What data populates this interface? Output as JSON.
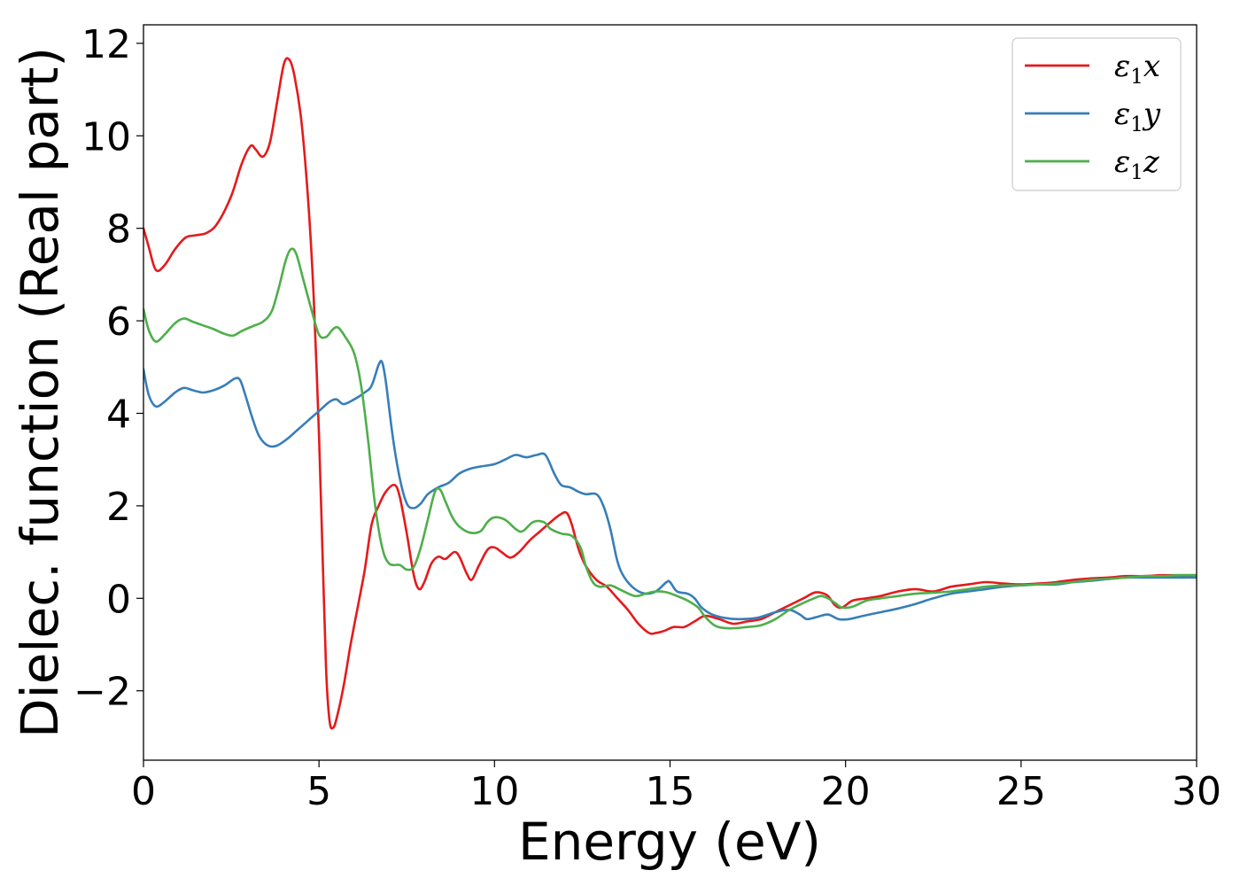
{
  "chart_data": {
    "type": "line",
    "title": "",
    "xlabel": "Energy (eV)",
    "ylabel": "Dielec. function (Real part)",
    "xlim": [
      0,
      30
    ],
    "ylim": [
      -3.5,
      12.4
    ],
    "xticks": [
      0,
      5,
      10,
      15,
      20,
      25,
      30
    ],
    "yticks": [
      -2,
      0,
      2,
      4,
      6,
      8,
      10,
      12
    ],
    "xtick_labels": [
      "0",
      "5",
      "10",
      "15",
      "20",
      "25",
      "30"
    ],
    "ytick_labels": [
      "−2",
      "0",
      "2",
      "4",
      "6",
      "8",
      "10",
      "12"
    ],
    "grid": false,
    "legend_position": "top-right",
    "series": [
      {
        "name": "ε1x",
        "legend_main": "ε",
        "legend_sub": "1",
        "legend_var": "x",
        "color": "#e41a1c",
        "points": [
          [
            0,
            8.0
          ],
          [
            0.15,
            7.6
          ],
          [
            0.35,
            7.1
          ],
          [
            0.6,
            7.2
          ],
          [
            0.9,
            7.55
          ],
          [
            1.2,
            7.8
          ],
          [
            1.5,
            7.85
          ],
          [
            1.8,
            7.9
          ],
          [
            2.1,
            8.1
          ],
          [
            2.5,
            8.7
          ],
          [
            2.8,
            9.4
          ],
          [
            3.05,
            9.78
          ],
          [
            3.2,
            9.7
          ],
          [
            3.4,
            9.55
          ],
          [
            3.6,
            9.85
          ],
          [
            3.8,
            10.7
          ],
          [
            4.0,
            11.55
          ],
          [
            4.15,
            11.65
          ],
          [
            4.3,
            11.3
          ],
          [
            4.5,
            10.3
          ],
          [
            4.7,
            8.5
          ],
          [
            4.85,
            6.5
          ],
          [
            5.0,
            3.5
          ],
          [
            5.1,
            1.0
          ],
          [
            5.2,
            -1.5
          ],
          [
            5.3,
            -2.65
          ],
          [
            5.4,
            -2.8
          ],
          [
            5.5,
            -2.6
          ],
          [
            5.7,
            -1.9
          ],
          [
            5.9,
            -1.0
          ],
          [
            6.1,
            -0.2
          ],
          [
            6.3,
            0.6
          ],
          [
            6.5,
            1.6
          ],
          [
            6.7,
            2.0
          ],
          [
            6.9,
            2.3
          ],
          [
            7.15,
            2.45
          ],
          [
            7.3,
            2.2
          ],
          [
            7.5,
            1.4
          ],
          [
            7.7,
            0.5
          ],
          [
            7.85,
            0.2
          ],
          [
            8.0,
            0.35
          ],
          [
            8.2,
            0.75
          ],
          [
            8.4,
            0.9
          ],
          [
            8.6,
            0.85
          ],
          [
            8.85,
            1.0
          ],
          [
            9.0,
            0.9
          ],
          [
            9.2,
            0.55
          ],
          [
            9.35,
            0.4
          ],
          [
            9.55,
            0.7
          ],
          [
            9.8,
            1.05
          ],
          [
            10.0,
            1.1
          ],
          [
            10.2,
            1.0
          ],
          [
            10.45,
            0.88
          ],
          [
            10.7,
            1.0
          ],
          [
            11.0,
            1.25
          ],
          [
            11.3,
            1.45
          ],
          [
            11.6,
            1.65
          ],
          [
            11.85,
            1.8
          ],
          [
            12.05,
            1.85
          ],
          [
            12.2,
            1.6
          ],
          [
            12.4,
            1.05
          ],
          [
            12.6,
            0.7
          ],
          [
            12.9,
            0.4
          ],
          [
            13.2,
            0.25
          ],
          [
            13.5,
            0.0
          ],
          [
            13.8,
            -0.25
          ],
          [
            14.1,
            -0.55
          ],
          [
            14.4,
            -0.75
          ],
          [
            14.6,
            -0.75
          ],
          [
            14.85,
            -0.7
          ],
          [
            15.1,
            -0.62
          ],
          [
            15.4,
            -0.62
          ],
          [
            15.7,
            -0.5
          ],
          [
            16.0,
            -0.38
          ],
          [
            16.4,
            -0.45
          ],
          [
            16.8,
            -0.55
          ],
          [
            17.2,
            -0.5
          ],
          [
            17.6,
            -0.45
          ],
          [
            18.0,
            -0.3
          ],
          [
            18.4,
            -0.15
          ],
          [
            18.8,
            0.0
          ],
          [
            19.1,
            0.12
          ],
          [
            19.3,
            0.12
          ],
          [
            19.5,
            0.05
          ],
          [
            19.7,
            -0.15
          ],
          [
            19.9,
            -0.2
          ],
          [
            20.2,
            -0.05
          ],
          [
            20.6,
            0.0
          ],
          [
            21.0,
            0.05
          ],
          [
            21.5,
            0.15
          ],
          [
            22.0,
            0.2
          ],
          [
            22.5,
            0.15
          ],
          [
            23.0,
            0.25
          ],
          [
            23.5,
            0.3
          ],
          [
            24.0,
            0.35
          ],
          [
            24.5,
            0.32
          ],
          [
            25.0,
            0.3
          ],
          [
            25.5,
            0.32
          ],
          [
            26.0,
            0.35
          ],
          [
            26.5,
            0.4
          ],
          [
            27.0,
            0.43
          ],
          [
            27.5,
            0.45
          ],
          [
            28.0,
            0.48
          ],
          [
            28.5,
            0.48
          ],
          [
            29.0,
            0.5
          ],
          [
            29.5,
            0.5
          ],
          [
            30.0,
            0.5
          ]
        ]
      },
      {
        "name": "ε1y",
        "legend_main": "ε",
        "legend_sub": "1",
        "legend_var": "y",
        "color": "#377eb8",
        "points": [
          [
            0,
            4.95
          ],
          [
            0.15,
            4.4
          ],
          [
            0.35,
            4.15
          ],
          [
            0.6,
            4.25
          ],
          [
            0.9,
            4.45
          ],
          [
            1.15,
            4.55
          ],
          [
            1.4,
            4.5
          ],
          [
            1.7,
            4.45
          ],
          [
            2.0,
            4.5
          ],
          [
            2.3,
            4.6
          ],
          [
            2.6,
            4.75
          ],
          [
            2.75,
            4.72
          ],
          [
            2.9,
            4.4
          ],
          [
            3.1,
            3.9
          ],
          [
            3.3,
            3.5
          ],
          [
            3.55,
            3.3
          ],
          [
            3.8,
            3.3
          ],
          [
            4.1,
            3.45
          ],
          [
            4.4,
            3.65
          ],
          [
            4.7,
            3.85
          ],
          [
            5.0,
            4.05
          ],
          [
            5.3,
            4.25
          ],
          [
            5.5,
            4.3
          ],
          [
            5.7,
            4.2
          ],
          [
            6.0,
            4.3
          ],
          [
            6.3,
            4.45
          ],
          [
            6.5,
            4.6
          ],
          [
            6.7,
            5.05
          ],
          [
            6.8,
            5.1
          ],
          [
            6.9,
            4.7
          ],
          [
            7.1,
            3.5
          ],
          [
            7.3,
            2.6
          ],
          [
            7.5,
            2.05
          ],
          [
            7.7,
            1.95
          ],
          [
            7.9,
            2.05
          ],
          [
            8.1,
            2.25
          ],
          [
            8.4,
            2.4
          ],
          [
            8.7,
            2.5
          ],
          [
            9.0,
            2.7
          ],
          [
            9.3,
            2.8
          ],
          [
            9.6,
            2.85
          ],
          [
            10.0,
            2.9
          ],
          [
            10.3,
            3.0
          ],
          [
            10.6,
            3.1
          ],
          [
            10.9,
            3.05
          ],
          [
            11.2,
            3.1
          ],
          [
            11.45,
            3.1
          ],
          [
            11.7,
            2.7
          ],
          [
            11.9,
            2.45
          ],
          [
            12.15,
            2.4
          ],
          [
            12.4,
            2.3
          ],
          [
            12.6,
            2.25
          ],
          [
            12.9,
            2.25
          ],
          [
            13.1,
            2.0
          ],
          [
            13.3,
            1.5
          ],
          [
            13.5,
            0.8
          ],
          [
            13.7,
            0.45
          ],
          [
            14.0,
            0.2
          ],
          [
            14.3,
            0.1
          ],
          [
            14.6,
            0.15
          ],
          [
            14.9,
            0.35
          ],
          [
            15.0,
            0.35
          ],
          [
            15.2,
            0.15
          ],
          [
            15.5,
            0.1
          ],
          [
            15.7,
            0.0
          ],
          [
            15.9,
            -0.2
          ],
          [
            16.2,
            -0.35
          ],
          [
            16.6,
            -0.43
          ],
          [
            17.0,
            -0.45
          ],
          [
            17.5,
            -0.42
          ],
          [
            18.0,
            -0.3
          ],
          [
            18.4,
            -0.25
          ],
          [
            18.7,
            -0.35
          ],
          [
            18.9,
            -0.45
          ],
          [
            19.2,
            -0.4
          ],
          [
            19.5,
            -0.35
          ],
          [
            19.8,
            -0.45
          ],
          [
            20.1,
            -0.45
          ],
          [
            20.5,
            -0.38
          ],
          [
            21.0,
            -0.3
          ],
          [
            21.5,
            -0.22
          ],
          [
            22.0,
            -0.12
          ],
          [
            22.5,
            0.0
          ],
          [
            23.0,
            0.1
          ],
          [
            23.5,
            0.15
          ],
          [
            24.0,
            0.2
          ],
          [
            24.5,
            0.25
          ],
          [
            25.0,
            0.28
          ],
          [
            25.5,
            0.3
          ],
          [
            26.0,
            0.3
          ],
          [
            26.5,
            0.35
          ],
          [
            27.0,
            0.38
          ],
          [
            27.5,
            0.42
          ],
          [
            28.0,
            0.45
          ],
          [
            28.5,
            0.45
          ],
          [
            29.0,
            0.45
          ],
          [
            29.5,
            0.45
          ],
          [
            30.0,
            0.45
          ]
        ]
      },
      {
        "name": "ε1z",
        "legend_main": "ε",
        "legend_sub": "1",
        "legend_var": "z",
        "color": "#4daf4a",
        "points": [
          [
            0,
            6.25
          ],
          [
            0.15,
            5.8
          ],
          [
            0.35,
            5.55
          ],
          [
            0.6,
            5.7
          ],
          [
            0.9,
            5.95
          ],
          [
            1.15,
            6.05
          ],
          [
            1.4,
            5.98
          ],
          [
            1.7,
            5.9
          ],
          [
            2.0,
            5.82
          ],
          [
            2.3,
            5.72
          ],
          [
            2.55,
            5.68
          ],
          [
            2.8,
            5.78
          ],
          [
            3.1,
            5.88
          ],
          [
            3.4,
            5.98
          ],
          [
            3.65,
            6.2
          ],
          [
            3.85,
            6.7
          ],
          [
            4.05,
            7.3
          ],
          [
            4.2,
            7.55
          ],
          [
            4.35,
            7.45
          ],
          [
            4.55,
            6.9
          ],
          [
            4.8,
            6.2
          ],
          [
            5.0,
            5.7
          ],
          [
            5.2,
            5.65
          ],
          [
            5.4,
            5.82
          ],
          [
            5.55,
            5.85
          ],
          [
            5.75,
            5.65
          ],
          [
            6.0,
            5.3
          ],
          [
            6.2,
            4.6
          ],
          [
            6.4,
            3.4
          ],
          [
            6.6,
            2.0
          ],
          [
            6.8,
            1.1
          ],
          [
            7.0,
            0.75
          ],
          [
            7.3,
            0.72
          ],
          [
            7.5,
            0.62
          ],
          [
            7.7,
            0.68
          ],
          [
            7.9,
            1.1
          ],
          [
            8.1,
            1.7
          ],
          [
            8.3,
            2.3
          ],
          [
            8.45,
            2.35
          ],
          [
            8.6,
            2.1
          ],
          [
            8.8,
            1.75
          ],
          [
            9.0,
            1.55
          ],
          [
            9.3,
            1.42
          ],
          [
            9.6,
            1.45
          ],
          [
            9.8,
            1.65
          ],
          [
            10.0,
            1.75
          ],
          [
            10.3,
            1.7
          ],
          [
            10.6,
            1.5
          ],
          [
            10.8,
            1.45
          ],
          [
            11.1,
            1.65
          ],
          [
            11.4,
            1.65
          ],
          [
            11.6,
            1.5
          ],
          [
            11.9,
            1.4
          ],
          [
            12.2,
            1.35
          ],
          [
            12.45,
            1.1
          ],
          [
            12.6,
            0.7
          ],
          [
            12.8,
            0.35
          ],
          [
            13.0,
            0.25
          ],
          [
            13.3,
            0.28
          ],
          [
            13.6,
            0.18
          ],
          [
            14.0,
            0.05
          ],
          [
            14.3,
            0.1
          ],
          [
            14.6,
            0.15
          ],
          [
            14.9,
            0.13
          ],
          [
            15.2,
            0.05
          ],
          [
            15.5,
            -0.05
          ],
          [
            15.8,
            -0.2
          ],
          [
            16.0,
            -0.4
          ],
          [
            16.3,
            -0.6
          ],
          [
            16.7,
            -0.65
          ],
          [
            17.2,
            -0.62
          ],
          [
            17.6,
            -0.58
          ],
          [
            18.0,
            -0.45
          ],
          [
            18.4,
            -0.25
          ],
          [
            18.8,
            -0.1
          ],
          [
            19.1,
            0.0
          ],
          [
            19.3,
            0.05
          ],
          [
            19.5,
            0.0
          ],
          [
            19.7,
            -0.1
          ],
          [
            19.9,
            -0.2
          ],
          [
            20.2,
            -0.18
          ],
          [
            20.6,
            -0.05
          ],
          [
            21.0,
            0.0
          ],
          [
            21.5,
            0.05
          ],
          [
            22.0,
            0.1
          ],
          [
            22.5,
            0.12
          ],
          [
            23.0,
            0.15
          ],
          [
            23.5,
            0.2
          ],
          [
            24.0,
            0.25
          ],
          [
            24.5,
            0.28
          ],
          [
            25.0,
            0.28
          ],
          [
            25.5,
            0.3
          ],
          [
            26.0,
            0.32
          ],
          [
            26.5,
            0.35
          ],
          [
            27.0,
            0.4
          ],
          [
            27.5,
            0.42
          ],
          [
            28.0,
            0.45
          ],
          [
            28.5,
            0.48
          ],
          [
            29.0,
            0.48
          ],
          [
            29.5,
            0.5
          ],
          [
            30.0,
            0.5
          ]
        ]
      }
    ]
  }
}
